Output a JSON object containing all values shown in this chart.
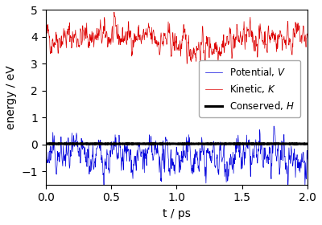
{
  "title": "",
  "xlabel": "t / ps",
  "ylabel": "energy / eV",
  "xlim": [
    0.0,
    2.0
  ],
  "ylim": [
    -1.5,
    5.0
  ],
  "yticks": [
    -1,
    0,
    1,
    2,
    3,
    4,
    5
  ],
  "xticks": [
    0.0,
    0.5,
    1.0,
    1.5,
    2.0
  ],
  "n_points": 800,
  "t_max": 2.0,
  "kinetic_mean": 4.0,
  "kinetic_amp": 0.28,
  "kinetic_slow_amp": 0.35,
  "kinetic_slow_freq": 0.7,
  "potential_mean": -0.5,
  "potential_amp": 0.38,
  "conserved_value": 0.02,
  "color_potential": "#0000dd",
  "color_kinetic": "#dd0000",
  "color_conserved": "#000000",
  "legend_labels": [
    "Potential, $V$",
    "Kinetic, $K$",
    "Conserved, $H$"
  ],
  "legend_loc": "center right",
  "seed": 42,
  "figsize": [
    4.0,
    2.8
  ],
  "dpi": 100
}
